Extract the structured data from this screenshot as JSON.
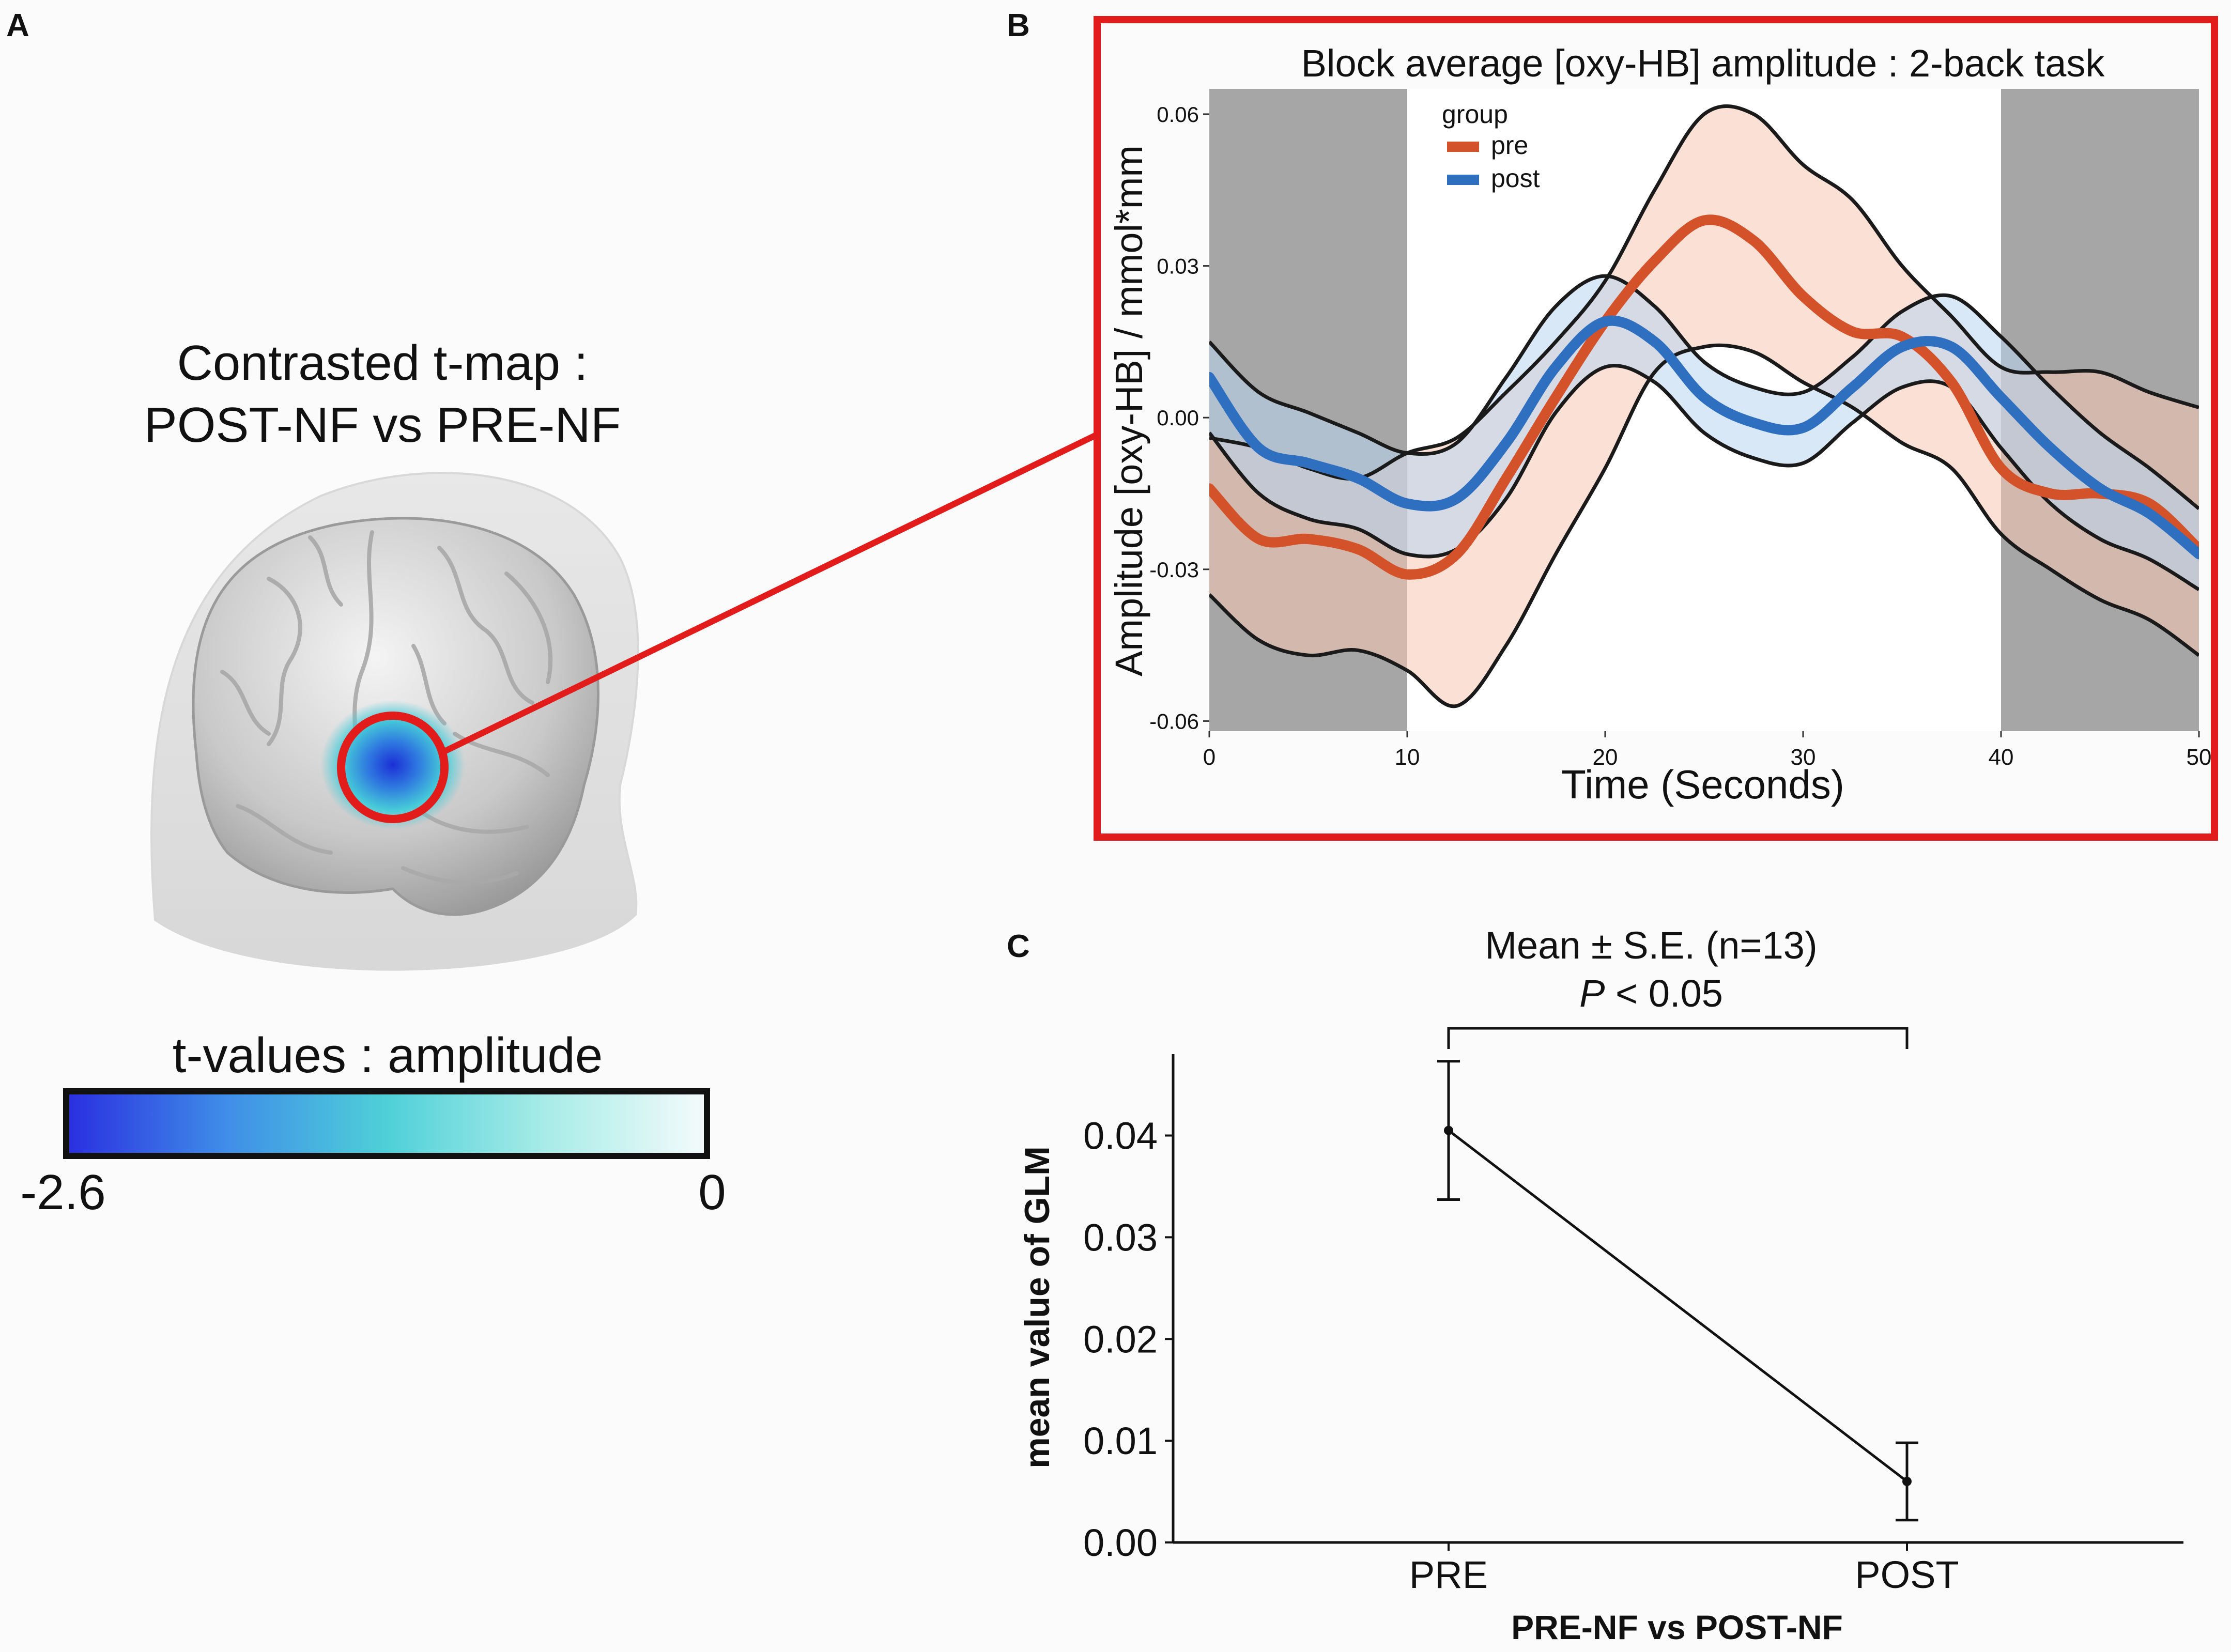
{
  "panel_labels": {
    "a": "A",
    "b": "B",
    "c": "C"
  },
  "panel_a": {
    "title_line1": "Contrasted t-map :",
    "title_line2": "POST-NF vs PRE-NF",
    "colorbar_title": "t-values : amplitude",
    "colorbar_min_label": "-2.6",
    "colorbar_max_label": "0",
    "colorbar_stops": [
      "#2a2ee0",
      "#3f8ee8",
      "#4fd0d8",
      "#a8ece8",
      "#f4fbfb"
    ],
    "highlight_color": "#e21b1b"
  },
  "chart_data": [
    {
      "type": "line",
      "title": "Block average [oxy-HB] amplitude : 2-back task",
      "xlabel": "Time (Seconds)",
      "ylabel": "Amplitude [oxy-HB] / mmol*mm",
      "xlim": [
        0,
        50
      ],
      "ylim": [
        -0.062,
        0.065
      ],
      "xticks": [
        0,
        10,
        20,
        30,
        40,
        50
      ],
      "yticks": [
        -0.06,
        -0.03,
        0.0,
        0.03,
        0.06
      ],
      "ytick_labels": [
        "-0.06",
        "-0.03",
        "0.00",
        "0.03",
        "0.06"
      ],
      "shaded_rest_periods": [
        [
          0,
          10
        ],
        [
          40,
          50
        ]
      ],
      "task_period": [
        10,
        40
      ],
      "legend_title": "group",
      "legend_position": "top-left",
      "x": [
        0,
        2.5,
        5,
        7.5,
        10,
        12.5,
        15,
        17.5,
        20,
        22.5,
        25,
        27.5,
        30,
        32.5,
        35,
        37.5,
        40,
        42.5,
        45,
        47.5,
        50
      ],
      "series": [
        {
          "name": "pre",
          "color": "#d4522a",
          "band_color": "#f6c7b3",
          "mean": [
            -0.014,
            -0.024,
            -0.024,
            -0.026,
            -0.031,
            -0.027,
            -0.012,
            0.004,
            0.019,
            0.031,
            0.039,
            0.035,
            0.024,
            0.017,
            0.016,
            0.007,
            -0.01,
            -0.015,
            -0.015,
            -0.017,
            -0.026
          ],
          "upper": [
            -0.004,
            -0.006,
            -0.01,
            -0.012,
            -0.007,
            -0.004,
            0.005,
            0.015,
            0.027,
            0.045,
            0.06,
            0.06,
            0.05,
            0.043,
            0.03,
            0.02,
            0.01,
            0.009,
            0.009,
            0.005,
            0.002
          ],
          "lower": [
            -0.035,
            -0.044,
            -0.047,
            -0.046,
            -0.05,
            -0.057,
            -0.045,
            -0.027,
            -0.01,
            0.009,
            0.014,
            0.013,
            0.007,
            0.002,
            -0.005,
            -0.01,
            -0.023,
            -0.03,
            -0.036,
            -0.04,
            -0.047
          ]
        },
        {
          "name": "post",
          "color": "#2f6fbf",
          "band_color": "#b8d6f0",
          "mean": [
            0.008,
            -0.006,
            -0.009,
            -0.012,
            -0.017,
            -0.016,
            -0.005,
            0.01,
            0.019,
            0.015,
            0.004,
            -0.001,
            -0.002,
            0.006,
            0.014,
            0.014,
            0.004,
            -0.006,
            -0.014,
            -0.019,
            -0.027
          ],
          "upper": [
            0.015,
            0.005,
            0.001,
            -0.003,
            -0.007,
            -0.005,
            0.008,
            0.022,
            0.028,
            0.022,
            0.011,
            0.006,
            0.005,
            0.012,
            0.021,
            0.024,
            0.016,
            0.006,
            -0.003,
            -0.01,
            -0.018
          ],
          "lower": [
            -0.003,
            -0.015,
            -0.02,
            -0.022,
            -0.027,
            -0.026,
            -0.016,
            0.001,
            0.01,
            0.007,
            -0.003,
            -0.008,
            -0.009,
            -0.001,
            0.006,
            0.006,
            -0.006,
            -0.017,
            -0.024,
            -0.028,
            -0.034
          ]
        }
      ]
    },
    {
      "type": "line",
      "title": "Mean ± S.E. (n=13)",
      "significance_label_italic": "P",
      "significance_label_rest": " < 0.05",
      "xlabel": "PRE-NF vs POST-NF",
      "ylabel": "mean value of GLM",
      "categories": [
        "PRE",
        "POST"
      ],
      "values": [
        0.0405,
        0.006
      ],
      "errors": [
        0.0068,
        0.0038
      ],
      "ylim": [
        0.0,
        0.048
      ],
      "yticks": [
        0.0,
        0.01,
        0.02,
        0.03,
        0.04
      ],
      "ytick_labels": [
        "0.00",
        "0.01",
        "0.02",
        "0.03",
        "0.04"
      ]
    }
  ]
}
